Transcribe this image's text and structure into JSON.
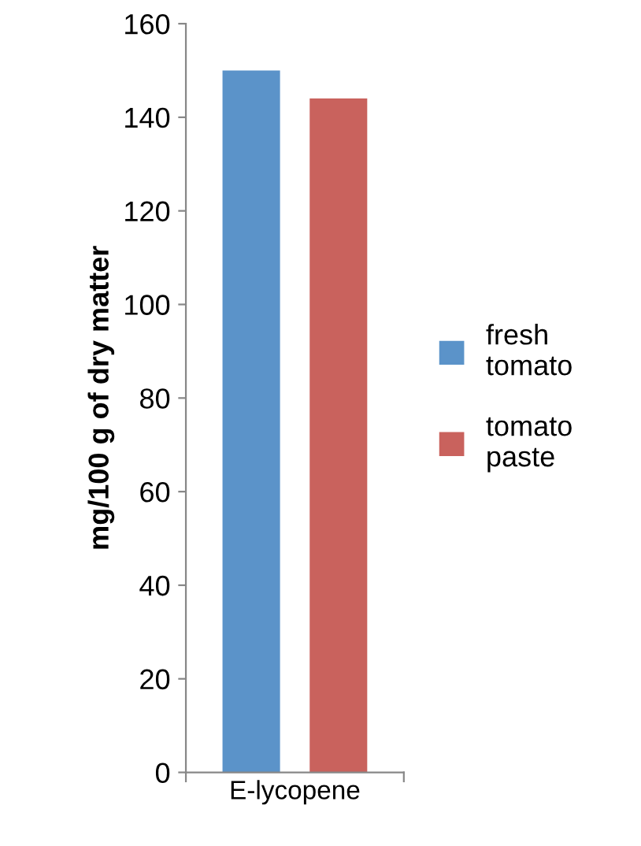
{
  "chart_data": {
    "type": "bar",
    "ylabel": "mg/100 g of dry matter",
    "categories": [
      "E-lycopene"
    ],
    "series": [
      {
        "name": "fresh tomato",
        "color": "#5b93c9",
        "values": [
          150
        ]
      },
      {
        "name": "tomato paste",
        "color": "#c9625d",
        "values": [
          144
        ]
      }
    ],
    "ylim": [
      0,
      160
    ],
    "yticks": [
      0,
      20,
      40,
      60,
      80,
      100,
      120,
      140,
      160
    ],
    "grid": false,
    "legend": "right"
  }
}
